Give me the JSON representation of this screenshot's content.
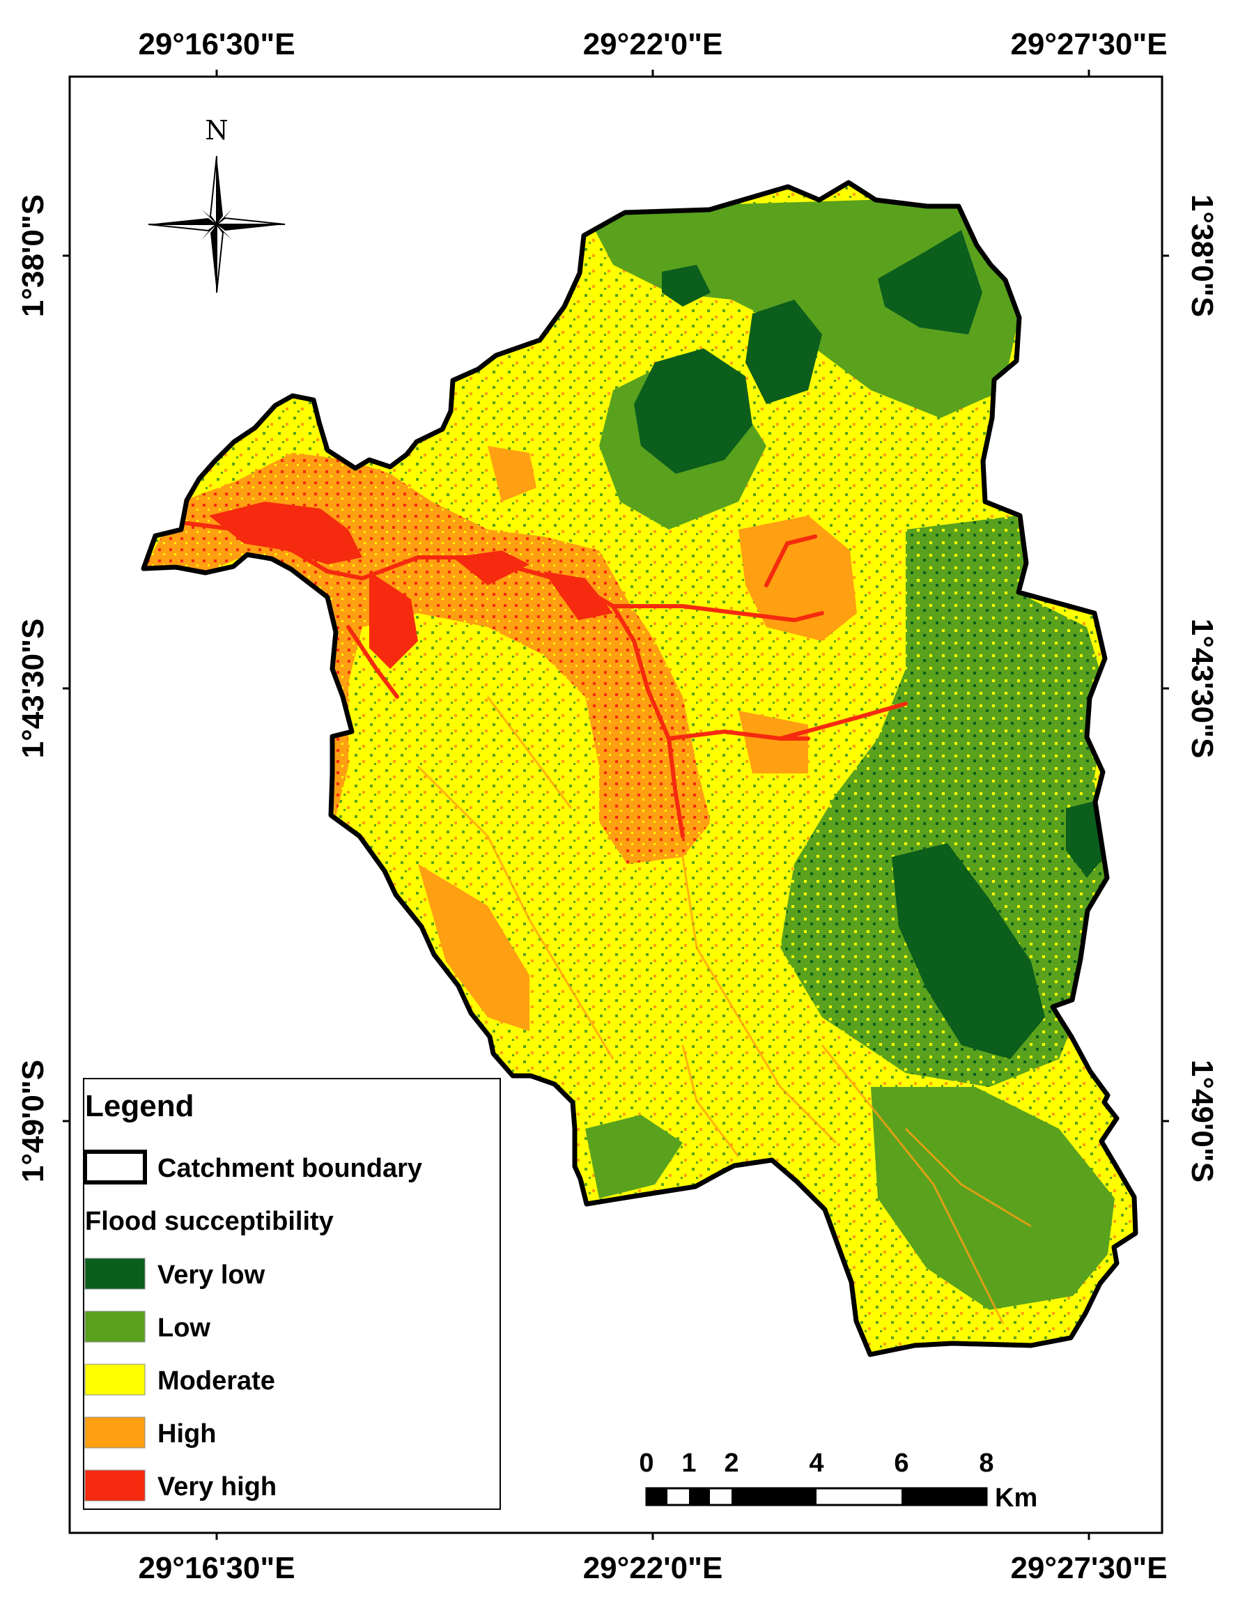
{
  "map": {
    "top_longitude_labels": [
      "29°16'30\"E",
      "29°22'0\"E",
      "29°27'30\"E"
    ],
    "bottom_longitude_labels": [
      "29°16'30\"E",
      "29°22'0\"E",
      "29°27'30\"E"
    ],
    "left_latitude_labels": [
      "1°38'0\"S",
      "1°43'30\"S",
      "1°49'0\"S"
    ],
    "right_latitude_labels": [
      "1°38'0\"S",
      "1°43'30\"S",
      "1°49'0\"S"
    ],
    "north_arrow": {
      "letter": "N",
      "icon": "north-arrow-compass-icon"
    }
  },
  "legend": {
    "title": "Legend",
    "boundary_label": "Catchment boundary",
    "subtitle": "Flood succeptibility",
    "classes": [
      {
        "label": "Very low",
        "color": "#0b5e1c"
      },
      {
        "label": "Low",
        "color": "#5aa21e"
      },
      {
        "label": "Moderate",
        "color": "#ffff00"
      },
      {
        "label": "High",
        "color": "#ff9f12"
      },
      {
        "label": "Very high",
        "color": "#f52a0e"
      }
    ]
  },
  "scale_bar": {
    "ticks": [
      "0",
      "1",
      "2",
      "4",
      "6",
      "8"
    ],
    "unit": "Km"
  }
}
